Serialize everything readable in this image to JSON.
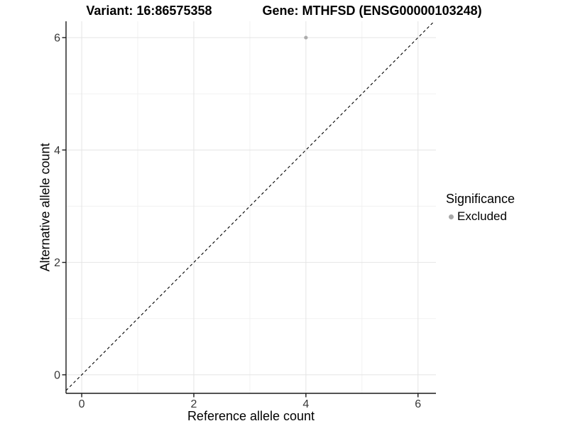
{
  "chart_data": {
    "type": "scatter",
    "titles": [
      "Variant: 16:86575358",
      "Gene: MTHFSD (ENSG00000103248)"
    ],
    "xlabel": "Reference allele count",
    "ylabel": "Alternative allele count",
    "xlim": [
      -0.28,
      6.32
    ],
    "ylim": [
      -0.33,
      6.29
    ],
    "xticks": [
      0,
      2,
      4,
      6
    ],
    "yticks": [
      0,
      2,
      4,
      6
    ],
    "minor_gridlines_x": [
      1,
      3,
      5
    ],
    "minor_gridlines_y": [
      1,
      3,
      5
    ],
    "grid": true,
    "axis_style": "left-bottom-only",
    "series": [
      {
        "name": "Excluded",
        "color": "#ababab",
        "points": [
          {
            "x": 4,
            "y": 6
          }
        ]
      }
    ],
    "reference_line": {
      "type": "identity",
      "equation": "y = x",
      "style": "dashed",
      "color": "#000000"
    },
    "legend": {
      "title": "Significance",
      "position": "right",
      "entries": [
        {
          "label": "Excluded",
          "marker_color": "#a8a8a8"
        }
      ]
    },
    "colors": {
      "background": "#ffffff",
      "grid_major": "#e4e4e4",
      "grid_minor": "#f1f1f1",
      "axis": "#1a1a1a",
      "tick_label": "#383838"
    }
  }
}
